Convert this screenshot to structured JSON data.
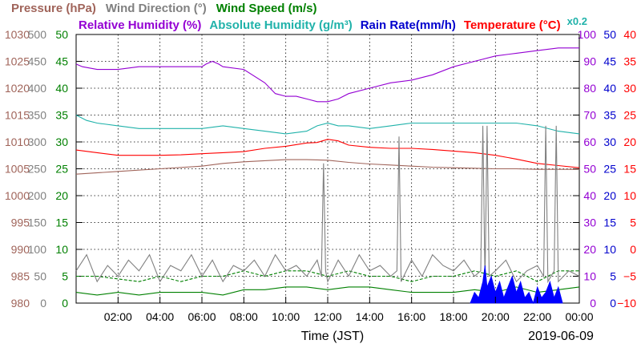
{
  "chart_data": {
    "type": "line",
    "date": "2019-06-09",
    "xlabel": "Time (JST)",
    "x_ticks": [
      "02:00",
      "04:00",
      "06:00",
      "08:00",
      "10:00",
      "12:00",
      "14:00",
      "16:00",
      "18:00",
      "20:00",
      "22:00",
      "00:00"
    ],
    "x_range_hours": [
      0,
      24
    ],
    "grid": true,
    "legend_placement": "top",
    "abs_humidity_scale_note": "x0.2",
    "axes": [
      {
        "name": "Pressure (hPa)",
        "color": "#a0645a",
        "ticks": [
          "980",
          "985",
          "990",
          "995",
          "1000",
          "1005",
          "1010",
          "1015",
          "1020",
          "1025",
          "1030"
        ],
        "range": [
          980,
          1030
        ]
      },
      {
        "name": "Wind Direction (°)",
        "color": "#808080",
        "ticks": [
          "0",
          "50",
          "100",
          "150",
          "200",
          "250",
          "300",
          "350",
          "400",
          "450",
          "500"
        ],
        "range": [
          0,
          500
        ]
      },
      {
        "name": "Wind Speed (m/s)",
        "color": "#008000",
        "ticks": [
          "0",
          "5",
          "10",
          "15",
          "20",
          "25",
          "30",
          "35",
          "40",
          "45",
          "50"
        ],
        "range": [
          0,
          50
        ]
      },
      {
        "name": "Relative Humidity (%)",
        "color": "#9400d3",
        "ticks": [
          "0",
          "10",
          "20",
          "30",
          "40",
          "50",
          "60",
          "70",
          "80",
          "90",
          "100"
        ],
        "range": [
          0,
          100
        ]
      },
      {
        "name": "Rain Rate(mm/h)",
        "color": "#0000cd",
        "ticks": [
          "0",
          "5",
          "10",
          "15",
          "20",
          "25",
          "30",
          "35",
          "40",
          "45",
          "50"
        ],
        "range": [
          0,
          50
        ]
      },
      {
        "name": "Temperature (°C)",
        "color": "#ff0000",
        "ticks": [
          "−10",
          "−5",
          "0",
          "5",
          "10",
          "15",
          "20",
          "25",
          "30",
          "35",
          "40"
        ],
        "range": [
          -10,
          40
        ]
      }
    ],
    "legend_row1": [
      {
        "label": "Pressure (hPa)",
        "color": "#a0645a"
      },
      {
        "label": "Wind Direction (°)",
        "color": "#808080"
      },
      {
        "label": "Wind Speed (m/s)",
        "color": "#008000"
      }
    ],
    "legend_row2": [
      {
        "label": "Relative Humidity (%)",
        "color": "#9400d3"
      },
      {
        "label": "Absolute Humidity (g/m³)",
        "color": "#20b2aa"
      },
      {
        "label": "Rain Rate(mm/h)",
        "color": "#0000cd"
      },
      {
        "label": "Temperature (°C)",
        "color": "#ff0000"
      }
    ],
    "series": [
      {
        "name": "Pressure (hPa)",
        "axis": 0,
        "color": "#a0645a",
        "x": [
          0,
          2,
          4,
          6,
          7,
          8,
          9,
          10,
          11,
          12,
          13,
          14,
          15,
          16,
          17,
          18,
          19,
          20,
          21,
          22,
          23,
          24
        ],
        "y": [
          1004,
          1004.5,
          1005,
          1005.5,
          1006,
          1006.3,
          1006.5,
          1006.7,
          1006.7,
          1006.6,
          1006.2,
          1005.9,
          1005.7,
          1005.5,
          1005.3,
          1005.2,
          1005.1,
          1005,
          1005,
          1004.9,
          1004.9,
          1004.9
        ]
      },
      {
        "name": "Relative Humidity (%)",
        "axis": 3,
        "color": "#9400d3",
        "x": [
          0,
          0.3,
          1,
          2,
          3,
          4,
          5,
          6,
          6.2,
          6.5,
          6.8,
          7,
          8,
          9,
          9.5,
          10,
          10.5,
          11,
          11.5,
          12,
          12.5,
          13,
          14,
          15,
          16,
          17,
          18,
          19,
          20,
          21,
          22,
          23,
          24
        ],
        "y": [
          89,
          88,
          87,
          87,
          88,
          88,
          88,
          88,
          89,
          90,
          89,
          88,
          87,
          82,
          78,
          77,
          77,
          76,
          75,
          75,
          76,
          78,
          80,
          82,
          83,
          85,
          88,
          90,
          92,
          93,
          94,
          95,
          95
        ]
      },
      {
        "name": "Absolute Humidity (g/m³)",
        "axis": 3,
        "color": "#20b2aa",
        "x": [
          0,
          0.5,
          1,
          2,
          3,
          4,
          5,
          6,
          7,
          8,
          9,
          10,
          11,
          11.5,
          12,
          12.5,
          13,
          14,
          15,
          16,
          17,
          18,
          19,
          20,
          21,
          22,
          23,
          24
        ],
        "y": [
          70,
          68,
          67,
          66,
          65,
          65,
          65,
          65,
          66,
          65,
          64,
          63,
          64,
          66,
          67,
          66,
          66,
          65,
          66,
          67,
          67,
          67,
          67,
          67,
          67,
          66,
          64,
          63
        ]
      },
      {
        "name": "Temperature (°C)",
        "axis": 5,
        "color": "#ff0000",
        "x": [
          0,
          1,
          2,
          3,
          4,
          5,
          6,
          7,
          8,
          9,
          10,
          11,
          11.5,
          12,
          12.5,
          13,
          14,
          15,
          16,
          17,
          18,
          19,
          20,
          21,
          22,
          23,
          24
        ],
        "y": [
          18.5,
          18,
          17.5,
          17.5,
          17.5,
          17.6,
          17.8,
          18,
          18.2,
          18.8,
          19.2,
          19.8,
          19.9,
          20.5,
          20.2,
          19.4,
          19,
          18.8,
          18.8,
          18.6,
          18.3,
          18,
          17.5,
          16.8,
          16,
          15.6,
          15.2
        ]
      },
      {
        "name": "Wind Speed (m/s)",
        "axis": 2,
        "color": "#008000",
        "style": "dashed",
        "x": [
          0,
          1,
          2,
          3,
          4,
          5,
          6,
          7,
          8,
          9,
          10,
          11,
          12,
          13,
          14,
          15,
          16,
          17,
          18,
          19,
          20,
          21,
          22,
          23,
          24
        ],
        "y": [
          5,
          5,
          4.5,
          4,
          5,
          4,
          5,
          5,
          6,
          5,
          6,
          6,
          5,
          6,
          5,
          5,
          4,
          5,
          5,
          6,
          5,
          6,
          4,
          6,
          6
        ]
      },
      {
        "name": "Wind Speed (m/s)",
        "axis": 2,
        "color": "#008000",
        "style": "solid",
        "x": [
          0,
          1,
          2,
          3,
          4,
          5,
          6,
          7,
          8,
          9,
          10,
          11,
          12,
          13,
          14,
          15,
          16,
          17,
          18,
          19,
          20,
          21,
          22,
          23,
          24
        ],
        "y": [
          2,
          1.5,
          2,
          1.5,
          2,
          2,
          2,
          1.5,
          2.5,
          2.5,
          3,
          3,
          2.5,
          3,
          3,
          2.5,
          2,
          2,
          2,
          2.5,
          2,
          3,
          2,
          2.5,
          3
        ]
      },
      {
        "name": "Wind Direction (°)",
        "axis": 1,
        "color": "#808080",
        "x": [
          0,
          0.5,
          1,
          1.5,
          2,
          2.5,
          3,
          3.5,
          4,
          4.5,
          5,
          5.5,
          6,
          6.5,
          7,
          7.5,
          8,
          8.5,
          9,
          9.5,
          10,
          10.5,
          11,
          11.5,
          11.7,
          11.8,
          11.9,
          12,
          12.5,
          13,
          13.5,
          14,
          14.5,
          15,
          15.3,
          15.4,
          15.5,
          16,
          16.5,
          17,
          17.5,
          18,
          18.5,
          19,
          19.3,
          19.4,
          19.5,
          19.6,
          19.7,
          20,
          20.5,
          21,
          21.5,
          22,
          22.3,
          22.4,
          22.5,
          22.8,
          22.9,
          23,
          23.5,
          24
        ],
        "y": [
          60,
          90,
          40,
          70,
          50,
          80,
          60,
          90,
          40,
          70,
          60,
          90,
          50,
          80,
          40,
          70,
          60,
          80,
          50,
          90,
          60,
          70,
          50,
          80,
          50,
          260,
          60,
          40,
          80,
          50,
          90,
          60,
          70,
          50,
          60,
          310,
          40,
          80,
          50,
          90,
          70,
          60,
          80,
          50,
          60,
          330,
          40,
          330,
          50,
          60,
          80,
          40,
          60,
          70,
          50,
          330,
          40,
          60,
          330,
          40,
          60,
          50
        ]
      },
      {
        "name": "Rain Rate(mm/h)",
        "axis": 4,
        "color": "#0000ff",
        "x": [
          18.8,
          19,
          19.2,
          19.4,
          19.5,
          19.6,
          19.8,
          20,
          20.2,
          20.4,
          20.6,
          20.8,
          21,
          21.2,
          21.4,
          21.6,
          21.8,
          22,
          22.2,
          22.4,
          22.6,
          22.8,
          23,
          23.2
        ],
        "y": [
          0,
          2,
          1,
          4,
          7,
          3,
          5,
          2,
          4,
          1,
          3,
          5,
          2,
          4,
          1,
          2,
          0,
          3,
          1,
          2,
          4,
          1,
          3,
          0
        ]
      }
    ]
  }
}
